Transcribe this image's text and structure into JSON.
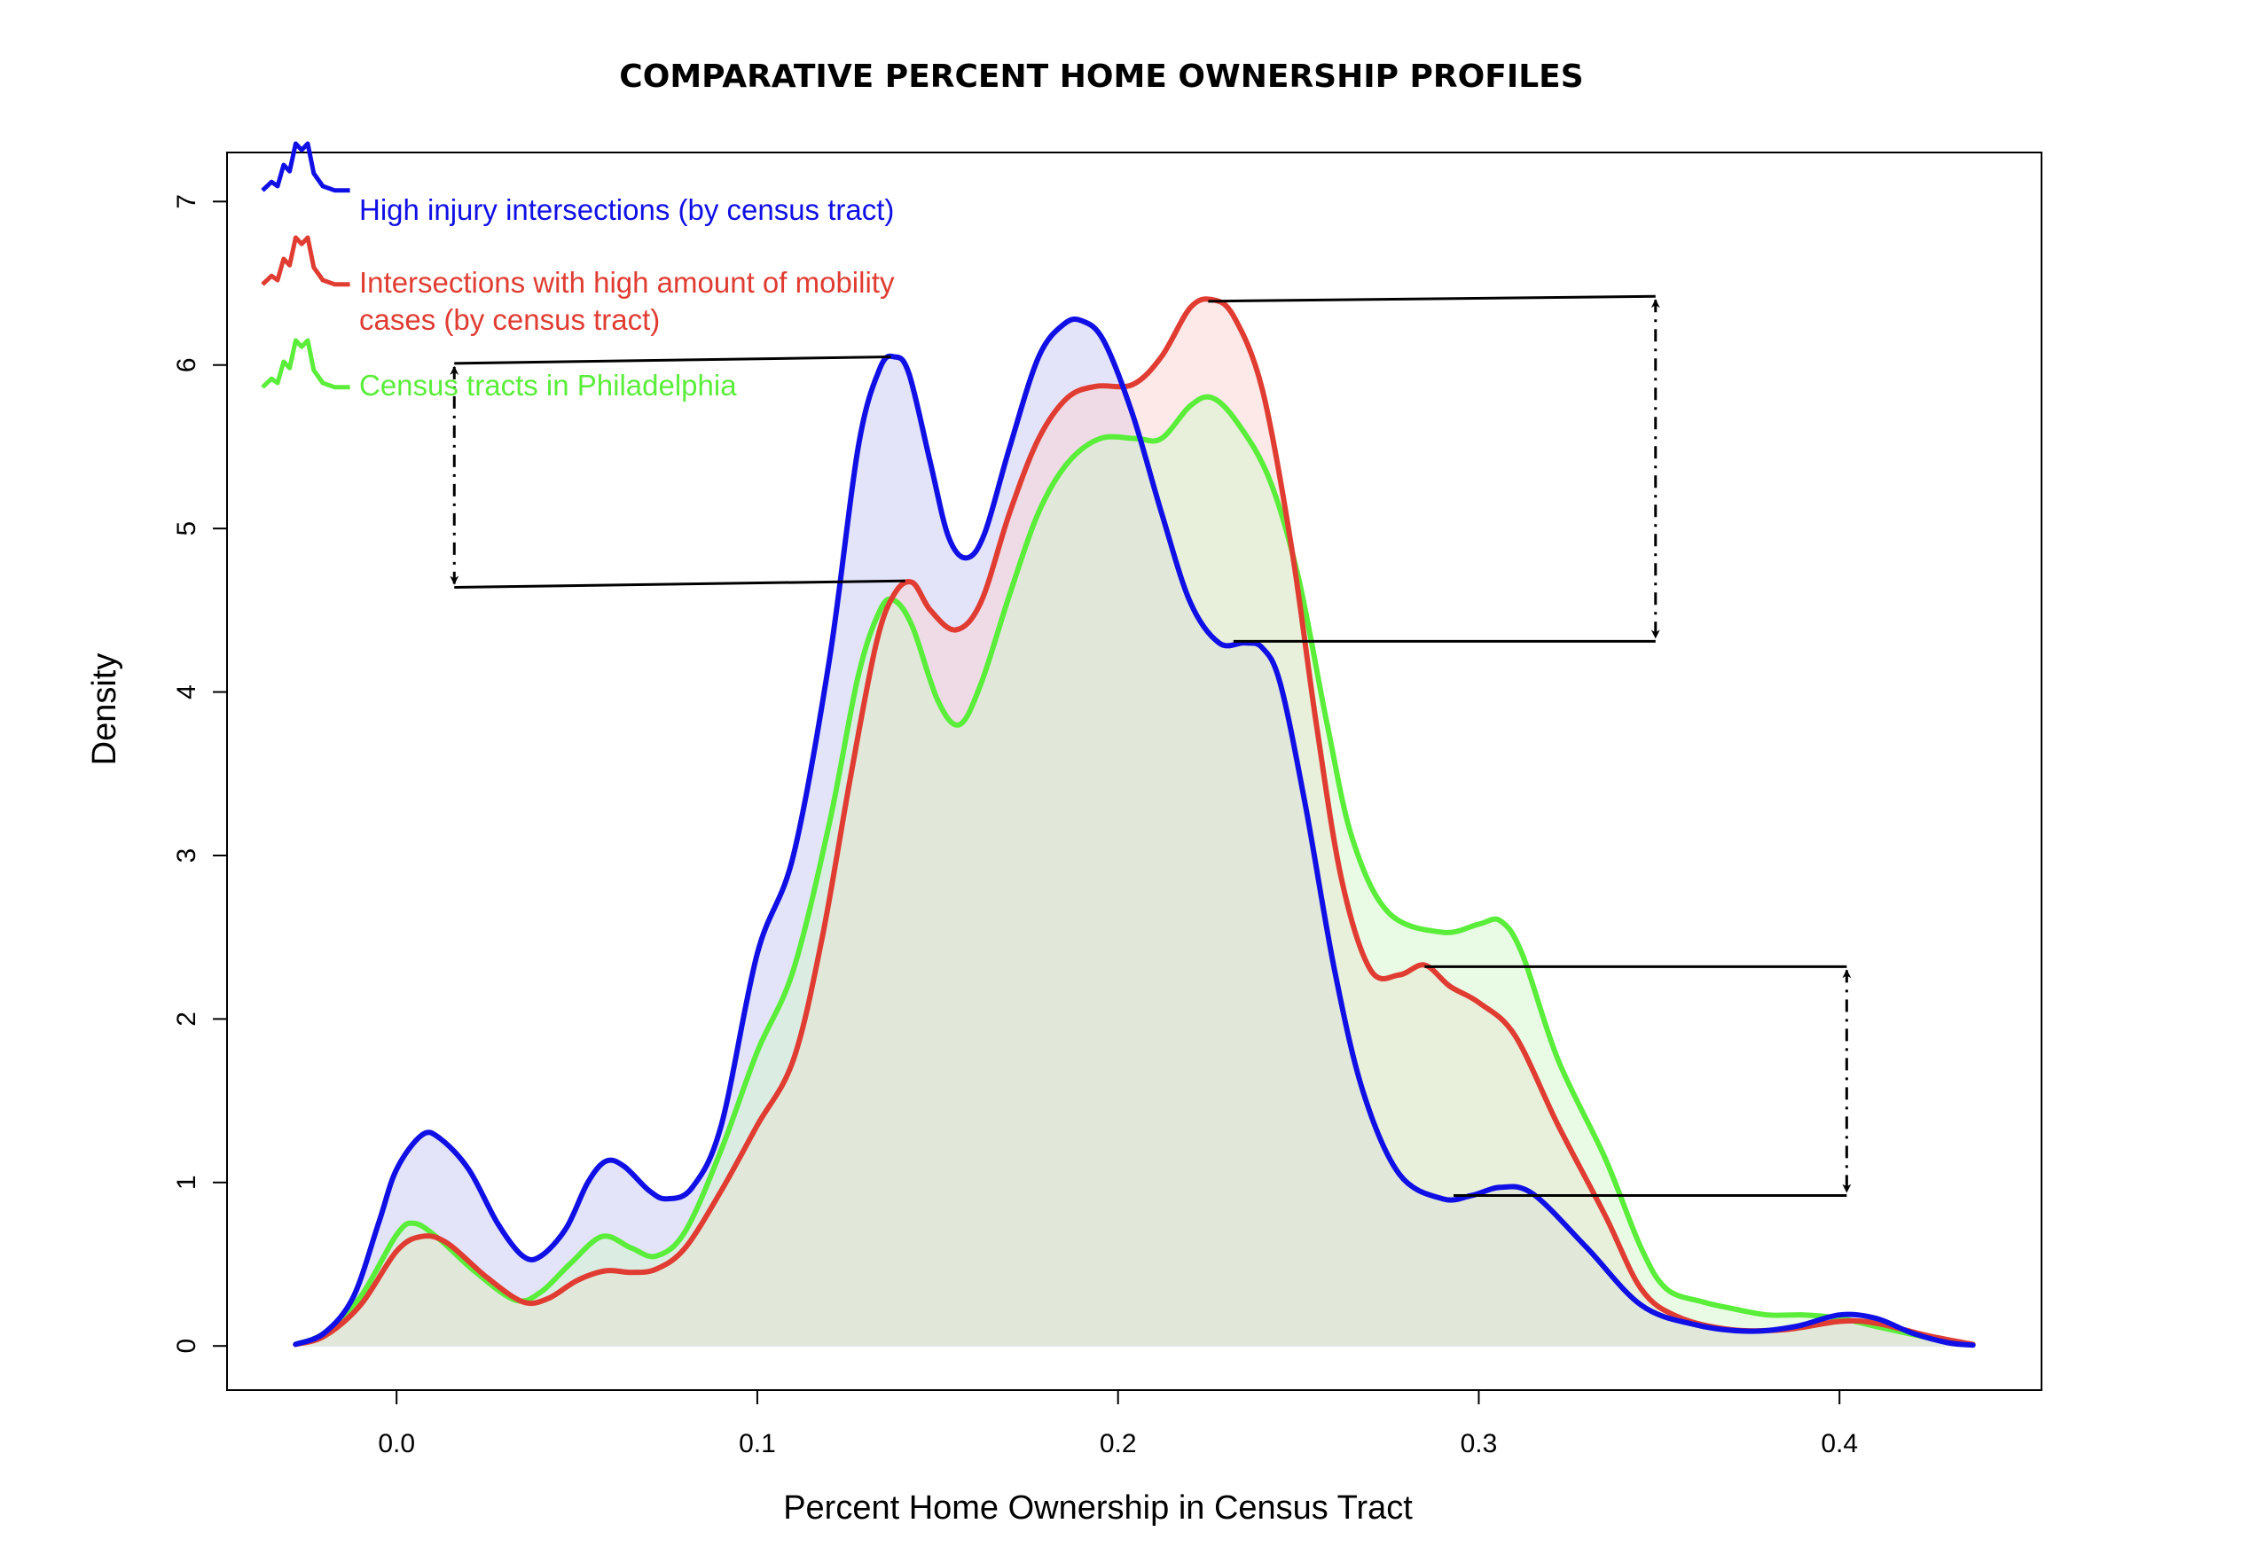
{
  "chart_data": {
    "type": "area",
    "title": "COMPARATIVE PERCENT HOME OWNERSHIP PROFILES",
    "xlabel": "Percent Home Ownership in Census Tract",
    "ylabel": "Density",
    "xlim": [
      -0.047,
      0.456
    ],
    "ylim": [
      -0.27,
      7.3
    ],
    "x_ticks": [
      0.0,
      0.1,
      0.2,
      0.3,
      0.4
    ],
    "x_tick_labels": [
      "0.0",
      "0.1",
      "0.2",
      "0.3",
      "0.4"
    ],
    "y_ticks": [
      0,
      1,
      2,
      3,
      4,
      5,
      6,
      7
    ],
    "y_tick_labels": [
      "0",
      "1",
      "2",
      "3",
      "4",
      "5",
      "6",
      "7"
    ],
    "grid": false,
    "legend_position": "top-left",
    "series": [
      {
        "name": "High injury intersections (by census tract)",
        "color": "#1010e6",
        "fill": "#c8c8f5",
        "points": [
          [
            -0.028,
            0.01
          ],
          [
            -0.02,
            0.08
          ],
          [
            -0.012,
            0.3
          ],
          [
            -0.005,
            0.75
          ],
          [
            0.0,
            1.08
          ],
          [
            0.007,
            1.29
          ],
          [
            0.012,
            1.27
          ],
          [
            0.02,
            1.08
          ],
          [
            0.028,
            0.75
          ],
          [
            0.035,
            0.55
          ],
          [
            0.04,
            0.55
          ],
          [
            0.047,
            0.72
          ],
          [
            0.053,
            1.0
          ],
          [
            0.058,
            1.13
          ],
          [
            0.063,
            1.1
          ],
          [
            0.07,
            0.95
          ],
          [
            0.075,
            0.9
          ],
          [
            0.082,
            0.97
          ],
          [
            0.09,
            1.35
          ],
          [
            0.1,
            2.4
          ],
          [
            0.11,
            3.0
          ],
          [
            0.12,
            4.2
          ],
          [
            0.128,
            5.5
          ],
          [
            0.134,
            5.98
          ],
          [
            0.138,
            6.05
          ],
          [
            0.142,
            5.95
          ],
          [
            0.148,
            5.4
          ],
          [
            0.153,
            4.95
          ],
          [
            0.158,
            4.82
          ],
          [
            0.163,
            4.97
          ],
          [
            0.17,
            5.5
          ],
          [
            0.178,
            6.05
          ],
          [
            0.185,
            6.25
          ],
          [
            0.19,
            6.27
          ],
          [
            0.196,
            6.15
          ],
          [
            0.204,
            5.7
          ],
          [
            0.212,
            5.1
          ],
          [
            0.22,
            4.55
          ],
          [
            0.228,
            4.3
          ],
          [
            0.235,
            4.3
          ],
          [
            0.24,
            4.27
          ],
          [
            0.245,
            4.05
          ],
          [
            0.252,
            3.3
          ],
          [
            0.26,
            2.3
          ],
          [
            0.268,
            1.55
          ],
          [
            0.278,
            1.05
          ],
          [
            0.29,
            0.9
          ],
          [
            0.298,
            0.92
          ],
          [
            0.306,
            0.97
          ],
          [
            0.315,
            0.93
          ],
          [
            0.33,
            0.6
          ],
          [
            0.345,
            0.25
          ],
          [
            0.36,
            0.13
          ],
          [
            0.375,
            0.09
          ],
          [
            0.388,
            0.12
          ],
          [
            0.4,
            0.19
          ],
          [
            0.41,
            0.17
          ],
          [
            0.42,
            0.08
          ],
          [
            0.43,
            0.02
          ],
          [
            0.437,
            0.005
          ]
        ]
      },
      {
        "name": "Intersections with high amount of mobility cases (by census tract)",
        "color": "#e03c32",
        "fill": "#f9d4d2",
        "points": [
          [
            -0.028,
            0.01
          ],
          [
            -0.02,
            0.06
          ],
          [
            -0.01,
            0.25
          ],
          [
            0.0,
            0.58
          ],
          [
            0.007,
            0.67
          ],
          [
            0.014,
            0.63
          ],
          [
            0.025,
            0.42
          ],
          [
            0.035,
            0.27
          ],
          [
            0.042,
            0.29
          ],
          [
            0.05,
            0.4
          ],
          [
            0.058,
            0.46
          ],
          [
            0.065,
            0.45
          ],
          [
            0.072,
            0.47
          ],
          [
            0.08,
            0.6
          ],
          [
            0.09,
            0.95
          ],
          [
            0.1,
            1.35
          ],
          [
            0.11,
            1.75
          ],
          [
            0.118,
            2.5
          ],
          [
            0.126,
            3.5
          ],
          [
            0.133,
            4.3
          ],
          [
            0.138,
            4.6
          ],
          [
            0.143,
            4.67
          ],
          [
            0.148,
            4.5
          ],
          [
            0.155,
            4.38
          ],
          [
            0.162,
            4.55
          ],
          [
            0.17,
            5.1
          ],
          [
            0.178,
            5.55
          ],
          [
            0.186,
            5.8
          ],
          [
            0.194,
            5.87
          ],
          [
            0.204,
            5.88
          ],
          [
            0.212,
            6.05
          ],
          [
            0.22,
            6.35
          ],
          [
            0.226,
            6.4
          ],
          [
            0.232,
            6.3
          ],
          [
            0.24,
            5.85
          ],
          [
            0.248,
            4.9
          ],
          [
            0.255,
            3.8
          ],
          [
            0.262,
            2.85
          ],
          [
            0.27,
            2.3
          ],
          [
            0.278,
            2.27
          ],
          [
            0.285,
            2.33
          ],
          [
            0.292,
            2.2
          ],
          [
            0.3,
            2.1
          ],
          [
            0.31,
            1.9
          ],
          [
            0.322,
            1.35
          ],
          [
            0.335,
            0.8
          ],
          [
            0.345,
            0.35
          ],
          [
            0.355,
            0.18
          ],
          [
            0.37,
            0.1
          ],
          [
            0.385,
            0.1
          ],
          [
            0.4,
            0.15
          ],
          [
            0.41,
            0.14
          ],
          [
            0.425,
            0.06
          ],
          [
            0.437,
            0.01
          ]
        ]
      },
      {
        "name": "Census tracts in Philadelphia",
        "color": "#5aee3a",
        "fill": "#d4f5cc",
        "points": [
          [
            -0.028,
            0.01
          ],
          [
            -0.02,
            0.08
          ],
          [
            -0.01,
            0.3
          ],
          [
            0.0,
            0.68
          ],
          [
            0.005,
            0.75
          ],
          [
            0.012,
            0.65
          ],
          [
            0.022,
            0.45
          ],
          [
            0.033,
            0.28
          ],
          [
            0.04,
            0.33
          ],
          [
            0.048,
            0.5
          ],
          [
            0.057,
            0.67
          ],
          [
            0.065,
            0.6
          ],
          [
            0.072,
            0.55
          ],
          [
            0.08,
            0.7
          ],
          [
            0.09,
            1.2
          ],
          [
            0.1,
            1.8
          ],
          [
            0.11,
            2.3
          ],
          [
            0.12,
            3.2
          ],
          [
            0.128,
            4.1
          ],
          [
            0.134,
            4.5
          ],
          [
            0.138,
            4.56
          ],
          [
            0.143,
            4.4
          ],
          [
            0.15,
            3.95
          ],
          [
            0.156,
            3.8
          ],
          [
            0.162,
            4.05
          ],
          [
            0.17,
            4.6
          ],
          [
            0.178,
            5.1
          ],
          [
            0.186,
            5.4
          ],
          [
            0.195,
            5.55
          ],
          [
            0.205,
            5.55
          ],
          [
            0.212,
            5.55
          ],
          [
            0.22,
            5.75
          ],
          [
            0.226,
            5.8
          ],
          [
            0.233,
            5.65
          ],
          [
            0.242,
            5.3
          ],
          [
            0.25,
            4.7
          ],
          [
            0.258,
            3.8
          ],
          [
            0.265,
            3.1
          ],
          [
            0.275,
            2.65
          ],
          [
            0.29,
            2.53
          ],
          [
            0.3,
            2.58
          ],
          [
            0.306,
            2.6
          ],
          [
            0.312,
            2.4
          ],
          [
            0.322,
            1.75
          ],
          [
            0.335,
            1.15
          ],
          [
            0.345,
            0.6
          ],
          [
            0.352,
            0.35
          ],
          [
            0.362,
            0.27
          ],
          [
            0.37,
            0.23
          ],
          [
            0.38,
            0.19
          ],
          [
            0.39,
            0.19
          ],
          [
            0.4,
            0.17
          ],
          [
            0.41,
            0.12
          ],
          [
            0.425,
            0.05
          ],
          [
            0.437,
            0.01
          ]
        ]
      }
    ],
    "annotations": [
      {
        "type": "gap-bracket",
        "x_arrow": 0.016,
        "top": {
          "from": [
            0.016,
            6.01
          ],
          "to": [
            0.137,
            6.05
          ]
        },
        "bottom": {
          "from": [
            0.016,
            4.64
          ],
          "to": [
            0.141,
            4.68
          ]
        }
      },
      {
        "type": "gap-bracket",
        "x_arrow": 0.349,
        "top": {
          "from": [
            0.225,
            6.39
          ],
          "to": [
            0.349,
            6.42
          ]
        },
        "bottom": {
          "from": [
            0.232,
            4.31
          ],
          "to": [
            0.349,
            4.31
          ]
        }
      },
      {
        "type": "gap-bracket",
        "x_arrow": 0.402,
        "top": {
          "from": [
            0.285,
            2.32
          ],
          "to": [
            0.402,
            2.32
          ]
        },
        "bottom": {
          "from": [
            0.293,
            0.92
          ],
          "to": [
            0.402,
            0.92
          ]
        }
      }
    ]
  }
}
